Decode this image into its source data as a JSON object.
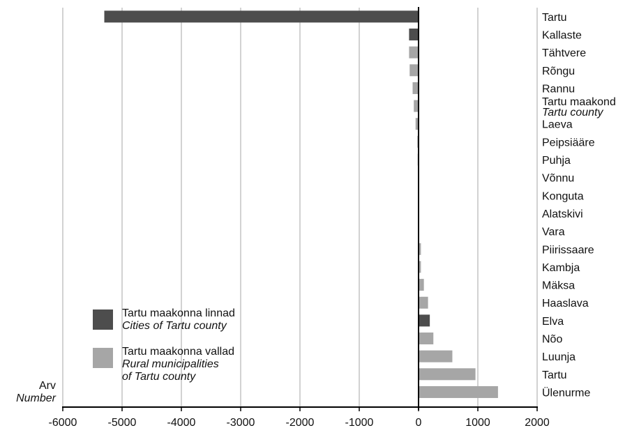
{
  "chart_data": {
    "type": "bar",
    "orientation": "horizontal",
    "ylabel": "Arv",
    "ylabel_en": "Number",
    "xlim": [
      -6000,
      2000
    ],
    "xticks": [
      "-6000",
      "-5000",
      "-4000",
      "-3000",
      "-2000",
      "-1000",
      "0",
      "1000",
      "2000"
    ],
    "grid": true,
    "legend_position": "bottom-left",
    "colors": {
      "cities": "#4d4d4d",
      "rural": "#a6a6a6",
      "grid": "#b3b3b3",
      "axis": "#000000"
    },
    "legend": [
      {
        "key": "cities",
        "label": "Tartu maakonna linnad",
        "label_en": "Cities of Tartu county"
      },
      {
        "key": "rural",
        "label": "Tartu maakonna vallad",
        "label_en_1": "Rural municipalities",
        "label_en_2": "of Tartu county"
      }
    ],
    "categories": [
      {
        "label": "Tartu",
        "value": -5300,
        "group": "cities"
      },
      {
        "label": "Kallaste",
        "value": -160,
        "group": "cities"
      },
      {
        "label": "Tähtvere",
        "value": -160,
        "group": "rural"
      },
      {
        "label": "Rõngu",
        "value": -150,
        "group": "rural"
      },
      {
        "label": "Rannu",
        "value": -100,
        "group": "rural"
      },
      {
        "label": "Tartu maakond",
        "label_en": "Tartu county",
        "value": -80,
        "group": "rural"
      },
      {
        "label": "Laeva",
        "value": -50,
        "group": "rural"
      },
      {
        "label": "Peipsiääre",
        "value": -20,
        "group": "rural"
      },
      {
        "label": "Puhja",
        "value": -15,
        "group": "rural"
      },
      {
        "label": "Võnnu",
        "value": -5,
        "group": "rural"
      },
      {
        "label": "Konguta",
        "value": -3,
        "group": "rural"
      },
      {
        "label": "Alatskivi",
        "value": 0,
        "group": "rural"
      },
      {
        "label": "Vara",
        "value": 5,
        "group": "rural"
      },
      {
        "label": "Piirissaare",
        "value": 40,
        "group": "rural"
      },
      {
        "label": "Kambja",
        "value": 40,
        "group": "rural"
      },
      {
        "label": "Mäksa",
        "value": 90,
        "group": "rural"
      },
      {
        "label": "Haaslava",
        "value": 160,
        "group": "rural"
      },
      {
        "label": "Elva",
        "value": 190,
        "group": "cities"
      },
      {
        "label": "Nõo",
        "value": 250,
        "group": "rural"
      },
      {
        "label": "Luunja",
        "value": 570,
        "group": "rural"
      },
      {
        "label": "Tartu",
        "value": 960,
        "group": "rural"
      },
      {
        "label": "Ülenurme",
        "value": 1340,
        "group": "rural"
      }
    ]
  }
}
